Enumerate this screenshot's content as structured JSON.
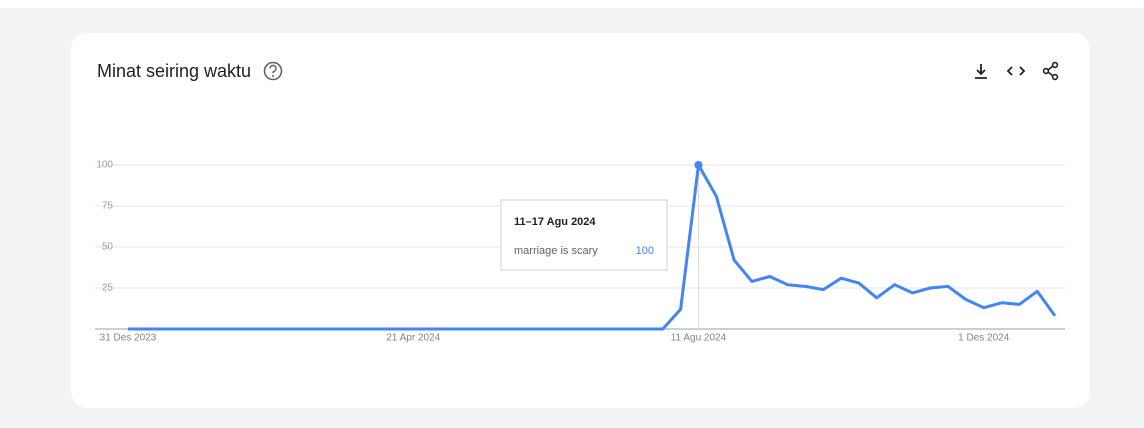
{
  "chart_data": {
    "type": "line",
    "title": "Minat seiring waktu",
    "categories": [
      "31 Des 2023",
      null,
      null,
      null,
      null,
      null,
      null,
      null,
      null,
      null,
      null,
      null,
      null,
      null,
      null,
      null,
      "21 Apr 2024",
      null,
      null,
      null,
      null,
      null,
      null,
      null,
      null,
      null,
      null,
      null,
      null,
      null,
      null,
      null,
      "11 Agu 2024",
      null,
      null,
      null,
      null,
      null,
      null,
      null,
      null,
      null,
      null,
      null,
      null,
      null,
      null,
      null,
      "1 Des 2024",
      null,
      null,
      null,
      null
    ],
    "series": [
      {
        "name": "marriage is scary",
        "color": "#4285f4",
        "values": [
          0,
          0,
          0,
          0,
          0,
          0,
          0,
          0,
          0,
          0,
          0,
          0,
          0,
          0,
          0,
          0,
          0,
          0,
          0,
          0,
          0,
          0,
          0,
          0,
          0,
          0,
          0,
          0,
          0,
          0,
          0,
          12,
          100,
          81,
          42,
          29,
          32,
          27,
          26,
          24,
          31,
          28,
          19,
          27,
          22,
          25,
          26,
          18,
          13,
          16,
          15,
          23,
          8
        ]
      }
    ],
    "ylim": [
      0,
      100
    ],
    "yticks": [
      25,
      50,
      75,
      100
    ],
    "grid": true,
    "tooltip": {
      "title": "11–17 Agu 2024",
      "index": 32
    }
  }
}
